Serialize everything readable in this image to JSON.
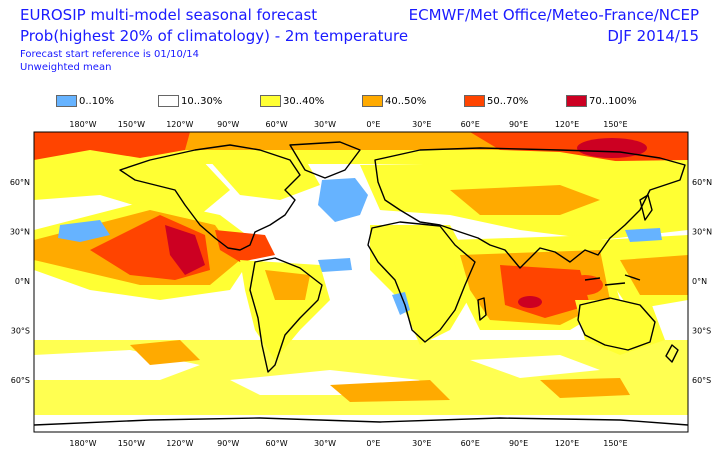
{
  "header": {
    "title": "EUROSIP multi-model seasonal forecast",
    "subtitle": "Prob(highest 20% of climatology) - 2m temperature",
    "reference": "Forecast start reference is 01/10/14",
    "mean_type": "Unweighted mean",
    "centres": "ECMWF/Met Office/Meteo-France/NCEP",
    "season": "DJF 2014/15"
  },
  "legend": [
    {
      "label": "0..10%",
      "color": "#66b3ff"
    },
    {
      "label": "10..30%",
      "color": "#ffffff"
    },
    {
      "label": "30..40%",
      "color": "#ffff33"
    },
    {
      "label": "40..50%",
      "color": "#ffaa00"
    },
    {
      "label": "50..70%",
      "color": "#ff4400"
    },
    {
      "label": "70..100%",
      "color": "#cc0022"
    }
  ],
  "map": {
    "lon_labels": [
      "180°W",
      "150°W",
      "120°W",
      "90°W",
      "60°W",
      "30°W",
      "0°E",
      "30°E",
      "60°E",
      "90°E",
      "120°E",
      "150°E"
    ],
    "lat_labels_left": [
      "60°N",
      "30°N",
      "0°N",
      "30°S",
      "60°S"
    ],
    "lat_labels_right": [
      "60°N",
      "30°N",
      "0°N",
      "30°S",
      "60°S"
    ]
  }
}
